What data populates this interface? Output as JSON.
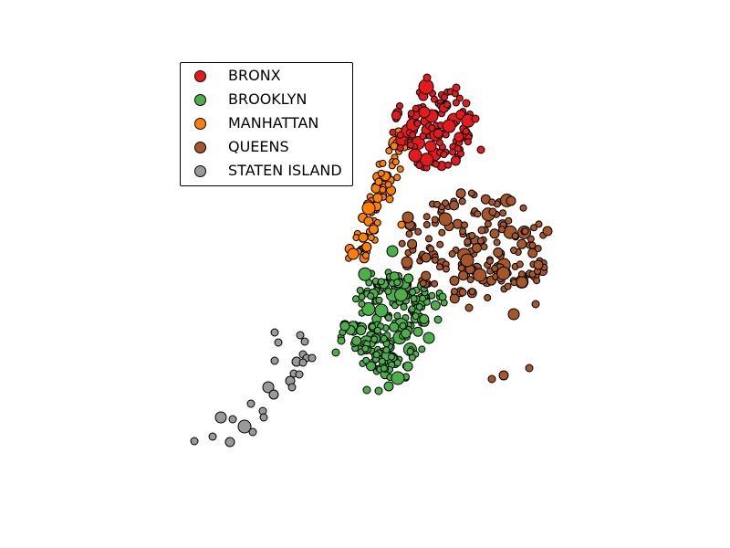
{
  "chart_data": {
    "type": "scatter",
    "title": "",
    "xlabel": "",
    "ylabel": "",
    "grid": false,
    "axes_visible": false,
    "legend_placement": "top-left",
    "series": [
      {
        "name": "BRONX",
        "color": "#e41a1c"
      },
      {
        "name": "BROOKLYN",
        "color": "#4daf4a"
      },
      {
        "name": "MANHATTAN",
        "color": "#ff7f00"
      },
      {
        "name": "QUEENS",
        "color": "#a65628"
      },
      {
        "name": "STATEN ISLAND",
        "color": "#999999"
      }
    ]
  }
}
